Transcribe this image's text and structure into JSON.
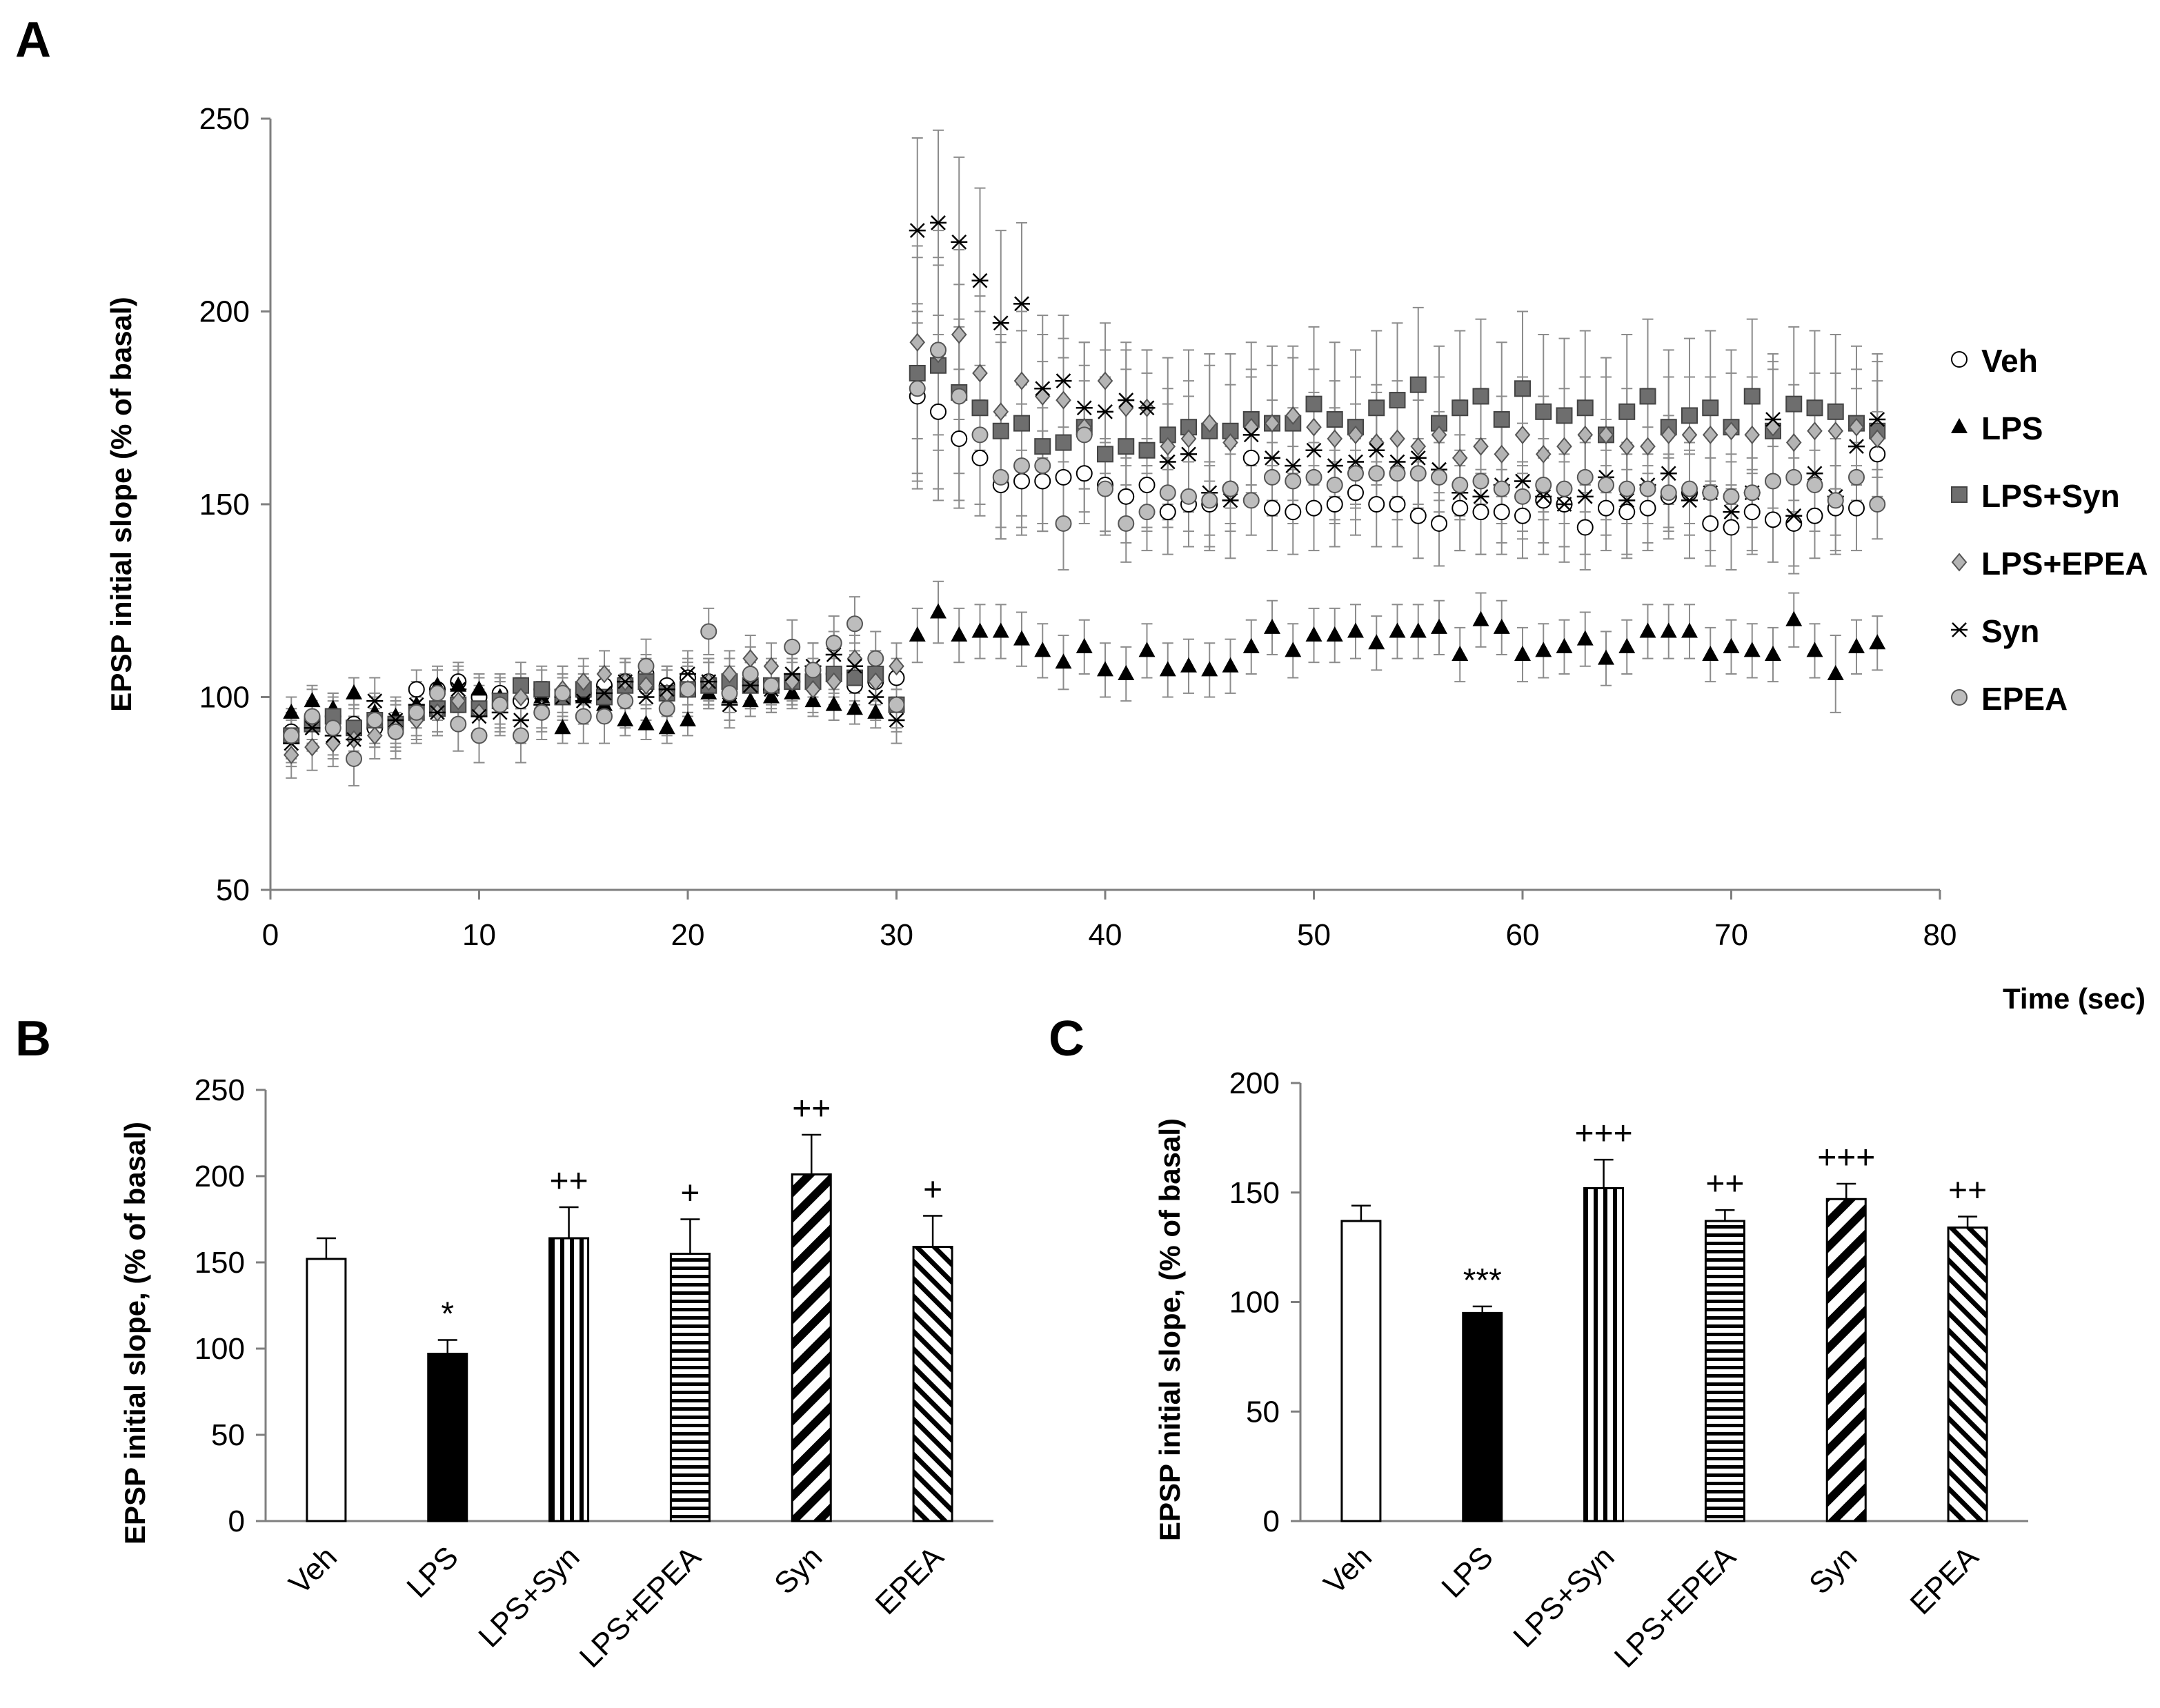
{
  "chart_data": [
    {
      "panel": "A",
      "type": "scatter",
      "xlabel": "Time (sec)",
      "ylabel": "EPSP initial slope (% of basal)",
      "xlim": [
        0,
        80
      ],
      "ylim": [
        50,
        250
      ],
      "xticks": [
        "0",
        "10",
        "20",
        "30",
        "40",
        "50",
        "60",
        "70",
        "80"
      ],
      "yticks": [
        "50",
        "100",
        "150",
        "200",
        "250"
      ],
      "legend_position": "right",
      "x": [
        1,
        2,
        3,
        4,
        5,
        6,
        7,
        8,
        9,
        10,
        11,
        12,
        13,
        14,
        15,
        16,
        17,
        18,
        19,
        20,
        21,
        22,
        23,
        24,
        25,
        26,
        27,
        28,
        29,
        30,
        31,
        32,
        33,
        34,
        35,
        36,
        37,
        38,
        39,
        40,
        41,
        42,
        43,
        44,
        45,
        46,
        47,
        48,
        49,
        50,
        51,
        52,
        53,
        54,
        55,
        56,
        57,
        58,
        59,
        60,
        61,
        62,
        63,
        64,
        65,
        66,
        67,
        68,
        69,
        70,
        71,
        72,
        73,
        74,
        75,
        76,
        77
      ],
      "series": [
        {
          "name": "Veh",
          "marker": "circle-open",
          "values": [
            91,
            94,
            95,
            93,
            92,
            91,
            102,
            102,
            104,
            100,
            101,
            99,
            102,
            100,
            101,
            103,
            104,
            106,
            103,
            105,
            104,
            105,
            104,
            103,
            104,
            105,
            106,
            103,
            104,
            105,
            178,
            174,
            167,
            162,
            155,
            156,
            156,
            157,
            158,
            155,
            152,
            155,
            148,
            150,
            150,
            154,
            162,
            149,
            148,
            149,
            150,
            153,
            150,
            150,
            147,
            145,
            149,
            148,
            148,
            147,
            151,
            150,
            144,
            149,
            148,
            149,
            152,
            153,
            145,
            144,
            148,
            146,
            145,
            147,
            149,
            149,
            163
          ]
        },
        {
          "name": "LPS",
          "marker": "triangle-filled",
          "values": [
            96,
            99,
            97,
            101,
            96,
            95,
            98,
            103,
            103,
            102,
            100,
            101,
            100,
            92,
            100,
            98,
            94,
            93,
            92,
            94,
            101,
            100,
            99,
            100,
            101,
            99,
            98,
            97,
            96,
            98,
            116,
            122,
            116,
            117,
            117,
            115,
            112,
            109,
            113,
            107,
            106,
            112,
            107,
            108,
            107,
            108,
            113,
            118,
            112,
            116,
            116,
            117,
            114,
            117,
            117,
            118,
            111,
            120,
            118,
            111,
            112,
            113,
            115,
            110,
            113,
            117,
            117,
            117,
            111,
            113,
            112,
            111,
            120,
            112,
            106,
            113,
            114
          ]
        },
        {
          "name": "LPS+Syn",
          "marker": "square-filled",
          "values": [
            90,
            93,
            95,
            92,
            94,
            93,
            96,
            97,
            98,
            97,
            99,
            103,
            102,
            100,
            102,
            100,
            103,
            104,
            101,
            102,
            103,
            104,
            103,
            103,
            104,
            104,
            106,
            105,
            106,
            98,
            184,
            186,
            179,
            175,
            169,
            171,
            165,
            166,
            170,
            163,
            165,
            164,
            168,
            170,
            169,
            169,
            172,
            171,
            171,
            176,
            172,
            170,
            175,
            177,
            181,
            171,
            175,
            178,
            172,
            180,
            174,
            173,
            175,
            168,
            174,
            178,
            170,
            173,
            175,
            170,
            178,
            169,
            176,
            175,
            174,
            171,
            169
          ]
        },
        {
          "name": "LPS+EPEA",
          "marker": "diamond-filled",
          "values": [
            85,
            87,
            88,
            89,
            90,
            92,
            94,
            96,
            99,
            96,
            98,
            100,
            97,
            102,
            104,
            106,
            104,
            103,
            101,
            102,
            104,
            106,
            110,
            108,
            104,
            102,
            104,
            110,
            104,
            108,
            192,
            189,
            194,
            184,
            174,
            182,
            178,
            177,
            170,
            182,
            175,
            175,
            165,
            167,
            171,
            166,
            170,
            171,
            173,
            170,
            167,
            168,
            166,
            167,
            165,
            168,
            162,
            165,
            163,
            168,
            163,
            165,
            168,
            168,
            165,
            165,
            168,
            168,
            168,
            169,
            168,
            170,
            166,
            169,
            169,
            170,
            167
          ]
        },
        {
          "name": "Syn",
          "marker": "asterisk",
          "values": [
            88,
            92,
            90,
            89,
            99,
            94,
            98,
            96,
            102,
            95,
            96,
            94,
            98,
            100,
            99,
            101,
            104,
            100,
            102,
            106,
            104,
            98,
            103,
            102,
            106,
            108,
            111,
            108,
            100,
            94,
            221,
            223,
            218,
            208,
            197,
            202,
            180,
            182,
            175,
            174,
            177,
            175,
            161,
            163,
            153,
            151,
            168,
            162,
            160,
            164,
            160,
            161,
            164,
            161,
            162,
            159,
            153,
            152,
            155,
            156,
            152,
            150,
            152,
            157,
            151,
            155,
            158,
            151,
            153,
            148,
            153,
            172,
            147,
            158,
            152,
            165,
            172
          ]
        },
        {
          "name": "EPEA",
          "marker": "circle-gray",
          "values": [
            90,
            95,
            92,
            84,
            94,
            91,
            96,
            101,
            93,
            90,
            98,
            90,
            96,
            101,
            95,
            95,
            99,
            108,
            97,
            102,
            117,
            101,
            106,
            103,
            113,
            107,
            114,
            119,
            110,
            98,
            180,
            190,
            178,
            168,
            157,
            160,
            160,
            145,
            168,
            154,
            145,
            148,
            153,
            152,
            151,
            154,
            151,
            157,
            156,
            157,
            155,
            158,
            158,
            158,
            158,
            157,
            155,
            156,
            154,
            152,
            155,
            154,
            157,
            155,
            154,
            154,
            153,
            154,
            153,
            152,
            153,
            156,
            157,
            155,
            151,
            157,
            150
          ]
        }
      ],
      "error": [
        [
          5,
          5,
          5,
          5,
          5,
          5,
          5,
          5,
          5,
          5,
          5,
          5,
          5,
          5,
          5,
          5,
          5,
          5,
          5,
          5,
          5,
          5,
          5,
          5,
          5,
          5,
          5,
          5,
          5,
          5,
          22,
          20,
          18,
          15,
          14,
          14,
          13,
          13,
          13,
          12,
          12,
          12,
          11,
          11,
          11,
          11,
          11,
          11,
          11,
          11,
          11,
          11,
          11,
          11,
          11,
          11,
          11,
          11,
          11,
          11,
          11,
          11,
          11,
          11,
          11,
          11,
          11,
          11,
          11,
          11,
          11,
          11,
          11,
          11,
          11,
          11,
          11
        ],
        [
          4,
          4,
          4,
          4,
          4,
          4,
          4,
          4,
          4,
          4,
          4,
          4,
          4,
          4,
          4,
          4,
          4,
          4,
          4,
          4,
          4,
          4,
          4,
          4,
          4,
          4,
          4,
          4,
          4,
          4,
          7,
          8,
          7,
          7,
          7,
          7,
          7,
          7,
          7,
          7,
          7,
          7,
          7,
          7,
          7,
          7,
          7,
          7,
          7,
          7,
          7,
          7,
          7,
          7,
          7,
          7,
          7,
          7,
          7,
          7,
          7,
          7,
          7,
          7,
          7,
          7,
          7,
          7,
          7,
          7,
          7,
          7,
          7,
          7,
          10,
          7,
          7
        ],
        [
          6,
          6,
          6,
          6,
          6,
          6,
          6,
          6,
          6,
          6,
          6,
          6,
          6,
          6,
          6,
          6,
          6,
          6,
          6,
          6,
          6,
          6,
          6,
          6,
          6,
          6,
          6,
          6,
          6,
          6,
          30,
          35,
          28,
          25,
          25,
          24,
          22,
          22,
          22,
          20,
          20,
          20,
          20,
          20,
          20,
          20,
          20,
          20,
          20,
          20,
          20,
          20,
          20,
          20,
          20,
          20,
          20,
          20,
          20,
          20,
          20,
          20,
          20,
          20,
          20,
          20,
          20,
          20,
          20,
          20,
          20,
          20,
          20,
          20,
          20,
          20,
          20
        ],
        [
          6,
          6,
          6,
          6,
          6,
          6,
          6,
          6,
          6,
          6,
          6,
          6,
          6,
          6,
          6,
          6,
          6,
          6,
          6,
          6,
          6,
          6,
          6,
          6,
          6,
          6,
          6,
          6,
          6,
          6,
          25,
          25,
          22,
          20,
          18,
          18,
          16,
          16,
          16,
          15,
          15,
          15,
          15,
          15,
          15,
          15,
          15,
          15,
          15,
          15,
          15,
          15,
          15,
          15,
          15,
          15,
          15,
          15,
          15,
          15,
          15,
          15,
          15,
          15,
          15,
          15,
          15,
          15,
          15,
          15,
          15,
          15,
          15,
          15,
          15,
          15,
          15
        ],
        [
          6,
          6,
          6,
          6,
          6,
          6,
          6,
          6,
          6,
          6,
          6,
          6,
          6,
          6,
          6,
          6,
          6,
          6,
          6,
          6,
          6,
          6,
          6,
          6,
          6,
          6,
          6,
          6,
          6,
          6,
          24,
          24,
          22,
          24,
          24,
          21,
          19,
          17,
          17,
          16,
          15,
          15,
          15,
          15,
          15,
          15,
          15,
          15,
          15,
          15,
          15,
          15,
          15,
          15,
          15,
          15,
          15,
          15,
          15,
          15,
          15,
          15,
          15,
          15,
          15,
          15,
          15,
          15,
          15,
          15,
          15,
          15,
          15,
          15,
          15,
          15,
          15
        ],
        [
          7,
          7,
          7,
          7,
          7,
          7,
          7,
          7,
          7,
          7,
          7,
          7,
          7,
          7,
          7,
          7,
          7,
          7,
          7,
          7,
          6,
          7,
          7,
          7,
          7,
          7,
          7,
          7,
          7,
          7,
          22,
          22,
          20,
          18,
          16,
          16,
          15,
          12,
          14,
          12,
          10,
          10,
          9,
          9,
          9,
          9,
          9,
          9,
          9,
          9,
          9,
          9,
          9,
          9,
          9,
          9,
          9,
          9,
          9,
          9,
          9,
          9,
          9,
          9,
          9,
          9,
          9,
          9,
          9,
          9,
          9,
          9,
          9,
          9,
          9,
          9,
          9
        ]
      ]
    },
    {
      "panel": "B",
      "type": "bar",
      "ylabel": "EPSP initial slope, (% of basal)",
      "ylim": [
        0,
        250
      ],
      "yticks": [
        "0",
        "50",
        "100",
        "150",
        "200",
        "250"
      ],
      "categories": [
        "Veh",
        "LPS",
        "LPS+Syn",
        "LPS+EPEA",
        "Syn",
        "EPEA"
      ],
      "values": [
        152,
        97,
        164,
        155,
        201,
        159
      ],
      "error": [
        12,
        8,
        18,
        20,
        23,
        18
      ],
      "annotations": [
        "",
        "*",
        "++",
        "+",
        "++",
        "+"
      ],
      "fills": [
        "white",
        "black",
        "vertical-stripes",
        "horizontal-stripes",
        "diagonal-wide",
        "diagonal-narrow"
      ]
    },
    {
      "panel": "C",
      "type": "bar",
      "ylabel": "EPSP initial slope, (% of basal)",
      "ylim": [
        0,
        200
      ],
      "yticks": [
        "0",
        "50",
        "100",
        "150",
        "200"
      ],
      "categories": [
        "Veh",
        "LPS",
        "LPS+Syn",
        "LPS+EPEA",
        "Syn",
        "EPEA"
      ],
      "values": [
        137,
        95,
        152,
        137,
        147,
        134
      ],
      "error": [
        7,
        3,
        13,
        5,
        7,
        5
      ],
      "annotations": [
        "",
        "***",
        "+++",
        "++",
        "+++",
        "++"
      ],
      "fills": [
        "white",
        "black",
        "vertical-stripes",
        "horizontal-stripes",
        "diagonal-wide",
        "diagonal-narrow"
      ]
    }
  ],
  "colors": {
    "axis": "#7f7f7f",
    "error_bar": "#8c8c8c",
    "square_fill": "#6e6e6e",
    "diamond_fill": "#b4b4b4",
    "gray_circle_fill": "#bdbdbd"
  }
}
